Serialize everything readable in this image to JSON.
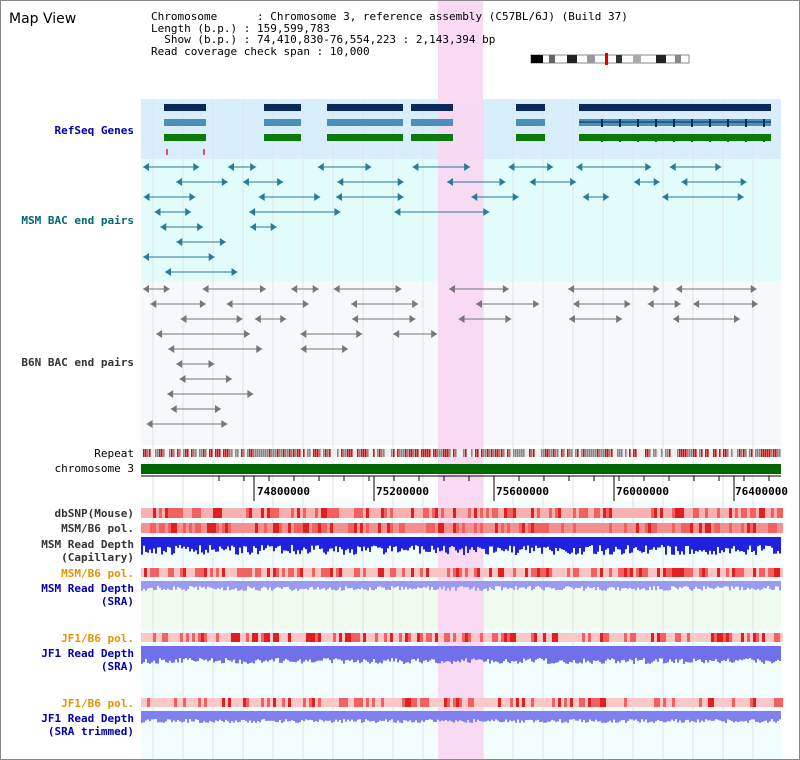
{
  "window": {
    "title": "Map View"
  },
  "info": {
    "chromosome_label": "Chromosome",
    "chromosome_value": "Chromosome 3, reference assembly (C57BL/6J) (Build 37)",
    "length_label": "Length (b.p.)",
    "length_value": "159,599,783",
    "show_label": "Show (b.p.)",
    "show_value": "74,410,830-76,554,223 : 2,143,394 bp",
    "read_span_label": "Read coverage check span",
    "read_span_value": "10,000"
  },
  "tracks": {
    "refseq": "RefSeq Genes",
    "msm_bac": "MSM BAC end pairs",
    "b6n_bac": "B6N BAC end pairs",
    "repeat": "Repeat",
    "chromosome": "chromosome 3",
    "dbsnp": "dbSNP(Mouse)",
    "msm_pol_1": "MSM/B6 pol.",
    "msm_depth_cap_1": "MSM Read Depth",
    "msm_depth_cap_2": "(Capillary)",
    "msm_pol_2": "MSM/B6 pol.",
    "msm_depth_sra_1": "MSM Read Depth",
    "msm_depth_sra_2": "(SRA)",
    "jf1_pol_1": "JF1/B6 pol.",
    "jf1_depth_sra_1": "JF1 Read Depth",
    "jf1_depth_sra_2": "(SRA)",
    "jf1_pol_2": "JF1/B6 pol.",
    "jf1_depth_trim_1": "JF1 Read Depth",
    "jf1_depth_trim_2": "(SRA trimmed)"
  },
  "axis": {
    "ticks": [
      "74800000",
      "75200000",
      "75600000",
      "76000000",
      "76400000"
    ]
  },
  "colors": {
    "highlight": "#f9d6f2",
    "refseq_bg": "#d8effb",
    "msm_bac_bg": "#e2fbfb",
    "b6n_bg": "#f6f8fa",
    "gene_dark": "#0a2a5e",
    "gene_mid": "#4a90b8",
    "gene_green": "#0a7a0a",
    "chrom_green": "#006600",
    "label_blue": "#0000aa",
    "label_teal": "#006677",
    "label_orange": "#e69500",
    "label_black": "#333333"
  }
}
